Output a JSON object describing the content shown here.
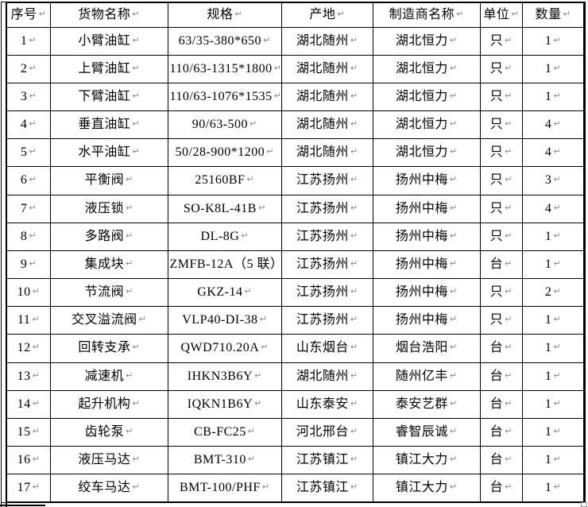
{
  "table": {
    "end_mark": "↵",
    "columns": [
      {
        "key": "index",
        "label": "序号"
      },
      {
        "key": "name",
        "label": "货物名称"
      },
      {
        "key": "spec",
        "label": "规格"
      },
      {
        "key": "origin",
        "label": "产地"
      },
      {
        "key": "manufacturer",
        "label": "制造商名称"
      },
      {
        "key": "unit",
        "label": "单位"
      },
      {
        "key": "qty",
        "label": "数量"
      }
    ],
    "rows": [
      {
        "index": "1",
        "name": "小臂油缸",
        "spec": "63/35-380*650",
        "origin": "湖北随州",
        "manufacturer": "湖北恒力",
        "unit": "只",
        "qty": "1"
      },
      {
        "index": "2",
        "name": "上臂油缸",
        "spec": "110/63-1315*1800",
        "origin": "湖北随州",
        "manufacturer": "湖北恒力",
        "unit": "只",
        "qty": "1"
      },
      {
        "index": "3",
        "name": "下臂油缸",
        "spec": "110/63-1076*1535",
        "origin": "湖北随州",
        "manufacturer": "湖北恒力",
        "unit": "只",
        "qty": "1"
      },
      {
        "index": "4",
        "name": "垂直油缸",
        "spec": "90/63-500",
        "origin": "湖北随州",
        "manufacturer": "湖北恒力",
        "unit": "只",
        "qty": "4"
      },
      {
        "index": "5",
        "name": "水平油缸",
        "spec": "50/28-900*1200",
        "origin": "湖北随州",
        "manufacturer": "湖北恒力",
        "unit": "只",
        "qty": "4"
      },
      {
        "index": "6",
        "name": "平衡阀",
        "spec": "25160BF",
        "origin": "江苏扬州",
        "manufacturer": "扬州中梅",
        "unit": "只",
        "qty": "3"
      },
      {
        "index": "7",
        "name": "液压锁",
        "spec": "SO-K8L-41B",
        "origin": "江苏扬州",
        "manufacturer": "扬州中梅",
        "unit": "只",
        "qty": "4"
      },
      {
        "index": "8",
        "name": "多路阀",
        "spec": "DL-8G",
        "origin": "江苏扬州",
        "manufacturer": "扬州中梅",
        "unit": "只",
        "qty": "1"
      },
      {
        "index": "9",
        "name": "集成块",
        "spec": "ZMFB-12A（5 联）",
        "origin": "江苏扬州",
        "manufacturer": "扬州中梅",
        "unit": "台",
        "qty": "1"
      },
      {
        "index": "10",
        "name": "节流阀",
        "spec": "GKZ-14",
        "origin": "江苏扬州",
        "manufacturer": "扬州中梅",
        "unit": "只",
        "qty": "2"
      },
      {
        "index": "11",
        "name": "交叉溢流阀",
        "spec": "VLP40-DI-38",
        "origin": "江苏扬州",
        "manufacturer": "扬州中梅",
        "unit": "只",
        "qty": "1"
      },
      {
        "index": "12",
        "name": "回转支承",
        "spec": "QWD710.20A",
        "origin": "山东烟台",
        "manufacturer": "烟台浩阳",
        "unit": "台",
        "qty": "1"
      },
      {
        "index": "13",
        "name": "减速机",
        "spec": "IHKN3B6Y",
        "origin": "湖北随州",
        "manufacturer": "随州亿丰",
        "unit": "台",
        "qty": "1"
      },
      {
        "index": "14",
        "name": "起升机构",
        "spec": "IQKN1B6Y",
        "origin": "山东泰安",
        "manufacturer": "泰安艺群",
        "unit": "台",
        "qty": "1"
      },
      {
        "index": "15",
        "name": "齿轮泵",
        "spec": "CB-FC25",
        "origin": "河北邢台",
        "manufacturer": "睿智辰诚",
        "unit": "台",
        "qty": "1"
      },
      {
        "index": "16",
        "name": "液压马达",
        "spec": "BMT-310",
        "origin": "江苏镇江",
        "manufacturer": "镇江大力",
        "unit": "台",
        "qty": "1"
      },
      {
        "index": "17",
        "name": "绞车马达",
        "spec": "BMT-100/PHF",
        "origin": "江苏镇江",
        "manufacturer": "镇江大力",
        "unit": "台",
        "qty": "1"
      }
    ]
  },
  "colors": {
    "border": "#000000",
    "text": "#000000",
    "paragraph_mark": "#8a8a8a",
    "background": "#ffffff"
  }
}
